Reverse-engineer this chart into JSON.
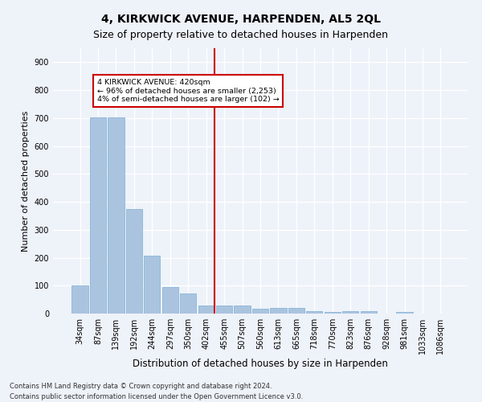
{
  "title": "4, KIRKWICK AVENUE, HARPENDEN, AL5 2QL",
  "subtitle": "Size of property relative to detached houses in Harpenden",
  "xlabel": "Distribution of detached houses by size in Harpenden",
  "ylabel": "Number of detached properties",
  "categories": [
    "34sqm",
    "87sqm",
    "139sqm",
    "192sqm",
    "244sqm",
    "297sqm",
    "350sqm",
    "402sqm",
    "455sqm",
    "507sqm",
    "560sqm",
    "613sqm",
    "665sqm",
    "718sqm",
    "770sqm",
    "823sqm",
    "876sqm",
    "928sqm",
    "981sqm",
    "1033sqm",
    "1086sqm"
  ],
  "values": [
    102,
    703,
    703,
    373,
    207,
    95,
    72,
    28,
    30,
    30,
    18,
    20,
    20,
    8,
    6,
    8,
    8,
    0,
    6,
    0,
    0
  ],
  "bar_color": "#aac4df",
  "bar_edge_color": "#7bafd4",
  "background_color": "#eef2f9",
  "grid_color": "#ffffff",
  "vline_x_index": 7,
  "vline_color": "#cc0000",
  "annotation_text": "4 KIRKWICK AVENUE: 420sqm\n← 96% of detached houses are smaller (2,253)\n4% of semi-detached houses are larger (102) →",
  "annotation_box_color": "#ffffff",
  "annotation_box_edge": "#cc0000",
  "footer": "Contains HM Land Registry data © Crown copyright and database right 2024.\nContains public sector information licensed under the Open Government Licence v3.0.",
  "ylim": [
    0,
    950
  ],
  "yticks": [
    0,
    100,
    200,
    300,
    400,
    500,
    600,
    700,
    800,
    900
  ],
  "title_fontsize": 10,
  "subtitle_fontsize": 9,
  "xlabel_fontsize": 8.5,
  "ylabel_fontsize": 8,
  "tick_fontsize": 7,
  "footer_fontsize": 6
}
